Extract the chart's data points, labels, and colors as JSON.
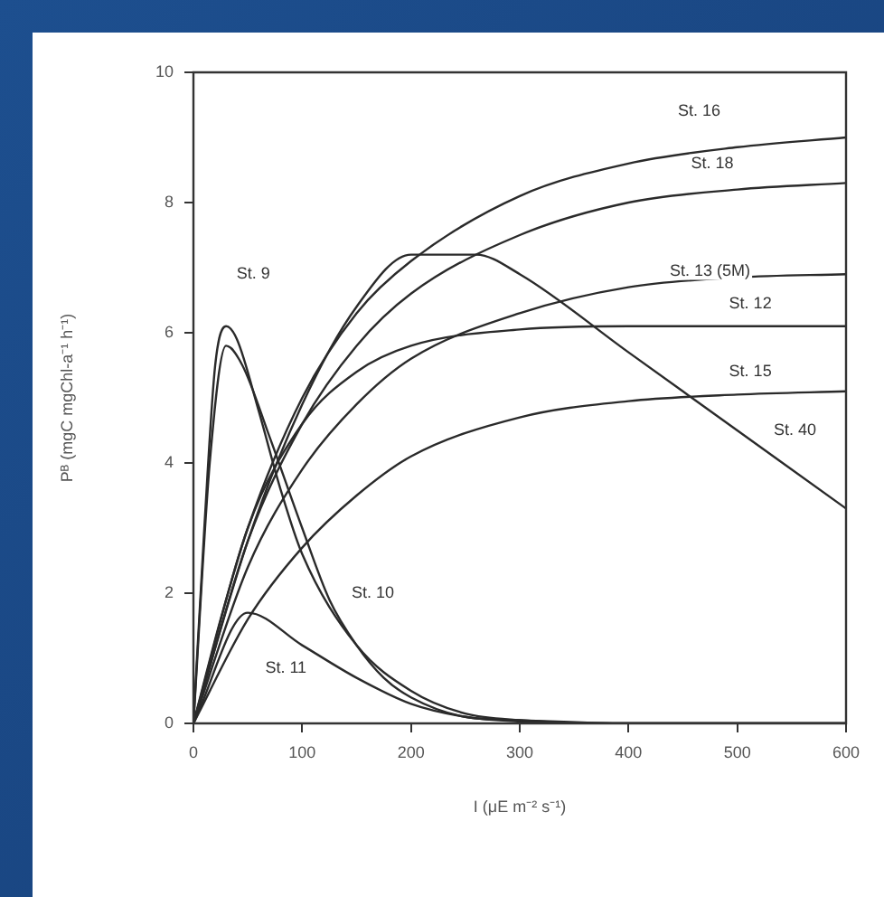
{
  "chart_data": {
    "type": "line",
    "xlabel": "I (μE m⁻² s⁻¹)",
    "ylabel": "Pᴮ (mgC mgChl-a⁻¹ h⁻¹)",
    "xlim": [
      0,
      600
    ],
    "ylim": [
      0,
      10
    ],
    "xticks": [
      0,
      100,
      200,
      300,
      400,
      500,
      600
    ],
    "yticks": [
      0,
      2,
      4,
      6,
      8,
      10
    ],
    "grid": false,
    "legend": false,
    "marker": "none",
    "line_style": "solid",
    "series": [
      {
        "color": "#2a2a2a",
        "x": [
          0,
          25,
          50,
          100,
          150,
          200,
          300,
          400,
          500,
          600
        ],
        "values": [
          0,
          1.6,
          3.0,
          5.0,
          6.3,
          7.1,
          8.1,
          8.6,
          8.85,
          9.0
        ]
      },
      {
        "color": "#2a2a2a",
        "x": [
          0,
          50,
          100,
          150,
          200,
          300,
          400,
          500,
          600
        ],
        "values": [
          0,
          2.8,
          4.6,
          5.8,
          6.6,
          7.5,
          8.0,
          8.2,
          8.3
        ]
      },
      {
        "color": "#2a2a2a",
        "x": [
          0,
          50,
          100,
          150,
          200,
          300,
          400,
          500,
          600
        ],
        "values": [
          0,
          2.4,
          3.9,
          4.9,
          5.6,
          6.3,
          6.7,
          6.85,
          6.9
        ]
      },
      {
        "color": "#2a2a2a",
        "x": [
          0,
          50,
          100,
          150,
          200,
          300,
          400,
          600
        ],
        "values": [
          0,
          3.0,
          4.6,
          5.4,
          5.8,
          6.05,
          6.1,
          6.1
        ]
      },
      {
        "color": "#2a2a2a",
        "x": [
          0,
          50,
          100,
          150,
          200,
          300,
          400,
          500,
          600
        ],
        "values": [
          0,
          1.6,
          2.7,
          3.5,
          4.1,
          4.7,
          4.95,
          5.05,
          5.1
        ]
      },
      {
        "color": "#2a2a2a",
        "x": [
          0,
          50,
          100,
          150,
          200,
          260,
          300,
          400,
          500,
          600
        ],
        "values": [
          0,
          2.8,
          4.9,
          6.4,
          7.2,
          7.2,
          6.9,
          5.7,
          4.5,
          3.3
        ]
      },
      {
        "color": "#2a2a2a",
        "x": [
          0,
          10,
          20,
          30,
          40,
          60,
          80,
          100,
          150,
          200,
          250,
          300,
          400,
          600
        ],
        "values": [
          0,
          3,
          5.5,
          6.1,
          5.9,
          4.8,
          3.6,
          2.6,
          1.2,
          0.5,
          0.15,
          0.05,
          0,
          0
        ]
      },
      {
        "color": "#2a2a2a",
        "x": [
          0,
          15,
          30,
          45,
          70,
          100,
          125,
          150,
          175,
          200,
          250,
          300,
          400,
          600
        ],
        "values": [
          0,
          4,
          5.8,
          5.5,
          4.4,
          3.0,
          1.9,
          1.2,
          0.7,
          0.4,
          0.1,
          0.05,
          0,
          0
        ]
      },
      {
        "color": "#2a2a2a",
        "x": [
          0,
          50,
          100,
          150,
          200,
          250,
          300,
          400,
          600
        ],
        "values": [
          0,
          1.7,
          1.2,
          0.7,
          0.3,
          0.1,
          0.03,
          0,
          0
        ]
      }
    ],
    "annotations": [
      {
        "text": "St. 16",
        "x": 465,
        "y": 9.4
      },
      {
        "text": "St. 18",
        "x": 477,
        "y": 8.6
      },
      {
        "text": "St. 13 (5M)",
        "x": 475,
        "y": 6.95
      },
      {
        "text": "St. 12",
        "x": 512,
        "y": 6.45
      },
      {
        "text": "St. 15",
        "x": 512,
        "y": 5.4
      },
      {
        "text": "St. 40",
        "x": 553,
        "y": 4.5
      },
      {
        "text": "St. 9",
        "x": 55,
        "y": 6.9
      },
      {
        "text": "St. 10",
        "x": 165,
        "y": 2.0
      },
      {
        "text": "St. 11",
        "x": 85,
        "y": 0.85
      }
    ]
  }
}
